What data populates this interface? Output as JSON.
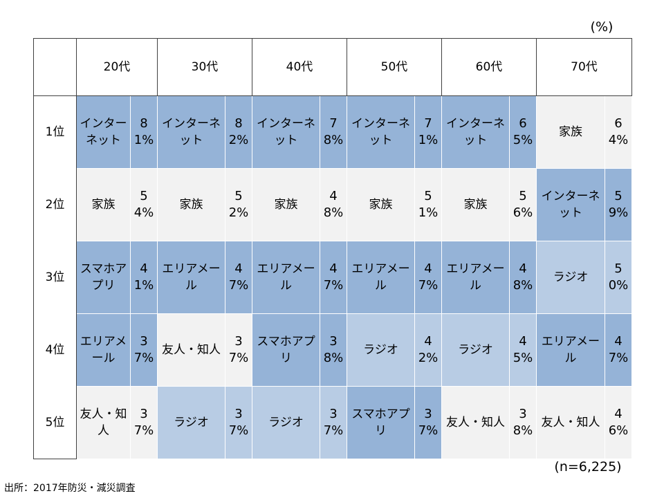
{
  "unit": "(%)",
  "columns": [
    "20代",
    "30代",
    "40代",
    "50代",
    "60代",
    "70代"
  ],
  "rows": [
    {
      "rank": "1位",
      "cells": [
        {
          "item": "インターネット",
          "pct": "81%",
          "color": "#95b3d7"
        },
        {
          "item": "インターネット",
          "pct": "82%",
          "color": "#95b3d7"
        },
        {
          "item": "インターネット",
          "pct": "78%",
          "color": "#95b3d7"
        },
        {
          "item": "インターネット",
          "pct": "71%",
          "color": "#95b3d7"
        },
        {
          "item": "インターネット",
          "pct": "65%",
          "color": "#95b3d7"
        },
        {
          "item": "家族",
          "pct": "64%",
          "color": "#f2f2f2"
        }
      ]
    },
    {
      "rank": "2位",
      "cells": [
        {
          "item": "家族",
          "pct": "54%",
          "color": "#f2f2f2"
        },
        {
          "item": "家族",
          "pct": "52%",
          "color": "#f2f2f2"
        },
        {
          "item": "家族",
          "pct": "48%",
          "color": "#f2f2f2"
        },
        {
          "item": "家族",
          "pct": "51%",
          "color": "#f2f2f2"
        },
        {
          "item": "家族",
          "pct": "56%",
          "color": "#f2f2f2"
        },
        {
          "item": "インターネット",
          "pct": "59%",
          "color": "#95b3d7"
        }
      ]
    },
    {
      "rank": "3位",
      "cells": [
        {
          "item": "スマホアプリ",
          "pct": "41%",
          "color": "#95b3d7"
        },
        {
          "item": "エリアメール",
          "pct": "47%",
          "color": "#95b3d7"
        },
        {
          "item": "エリアメール",
          "pct": "47%",
          "color": "#95b3d7"
        },
        {
          "item": "エリアメール",
          "pct": "47%",
          "color": "#95b3d7"
        },
        {
          "item": "エリアメール",
          "pct": "48%",
          "color": "#95b3d7"
        },
        {
          "item": "ラジオ",
          "pct": "50%",
          "color": "#b8cce4"
        }
      ]
    },
    {
      "rank": "4位",
      "cells": [
        {
          "item": "エリアメール",
          "pct": "37%",
          "color": "#95b3d7"
        },
        {
          "item": "友人・知人",
          "pct": "37%",
          "color": "#f2f2f2"
        },
        {
          "item": "スマホアプリ",
          "pct": "38%",
          "color": "#95b3d7"
        },
        {
          "item": "ラジオ",
          "pct": "42%",
          "color": "#b8cce4"
        },
        {
          "item": "ラジオ",
          "pct": "45%",
          "color": "#b8cce4"
        },
        {
          "item": "エリアメール",
          "pct": "47%",
          "color": "#95b3d7"
        }
      ]
    },
    {
      "rank": "5位",
      "cells": [
        {
          "item": "友人・知人",
          "pct": "37%",
          "color": "#f2f2f2"
        },
        {
          "item": "ラジオ",
          "pct": "37%",
          "color": "#b8cce4"
        },
        {
          "item": "ラジオ",
          "pct": "37%",
          "color": "#b8cce4"
        },
        {
          "item": "スマホアプリ",
          "pct": "37%",
          "color": "#95b3d7"
        },
        {
          "item": "友人・知人",
          "pct": "38%",
          "color": "#f2f2f2"
        },
        {
          "item": "友人・知人",
          "pct": "46%",
          "color": "#f2f2f2"
        }
      ]
    }
  ],
  "sample": "(n=6,225)",
  "source": "出所：2017年防災・減災調査"
}
